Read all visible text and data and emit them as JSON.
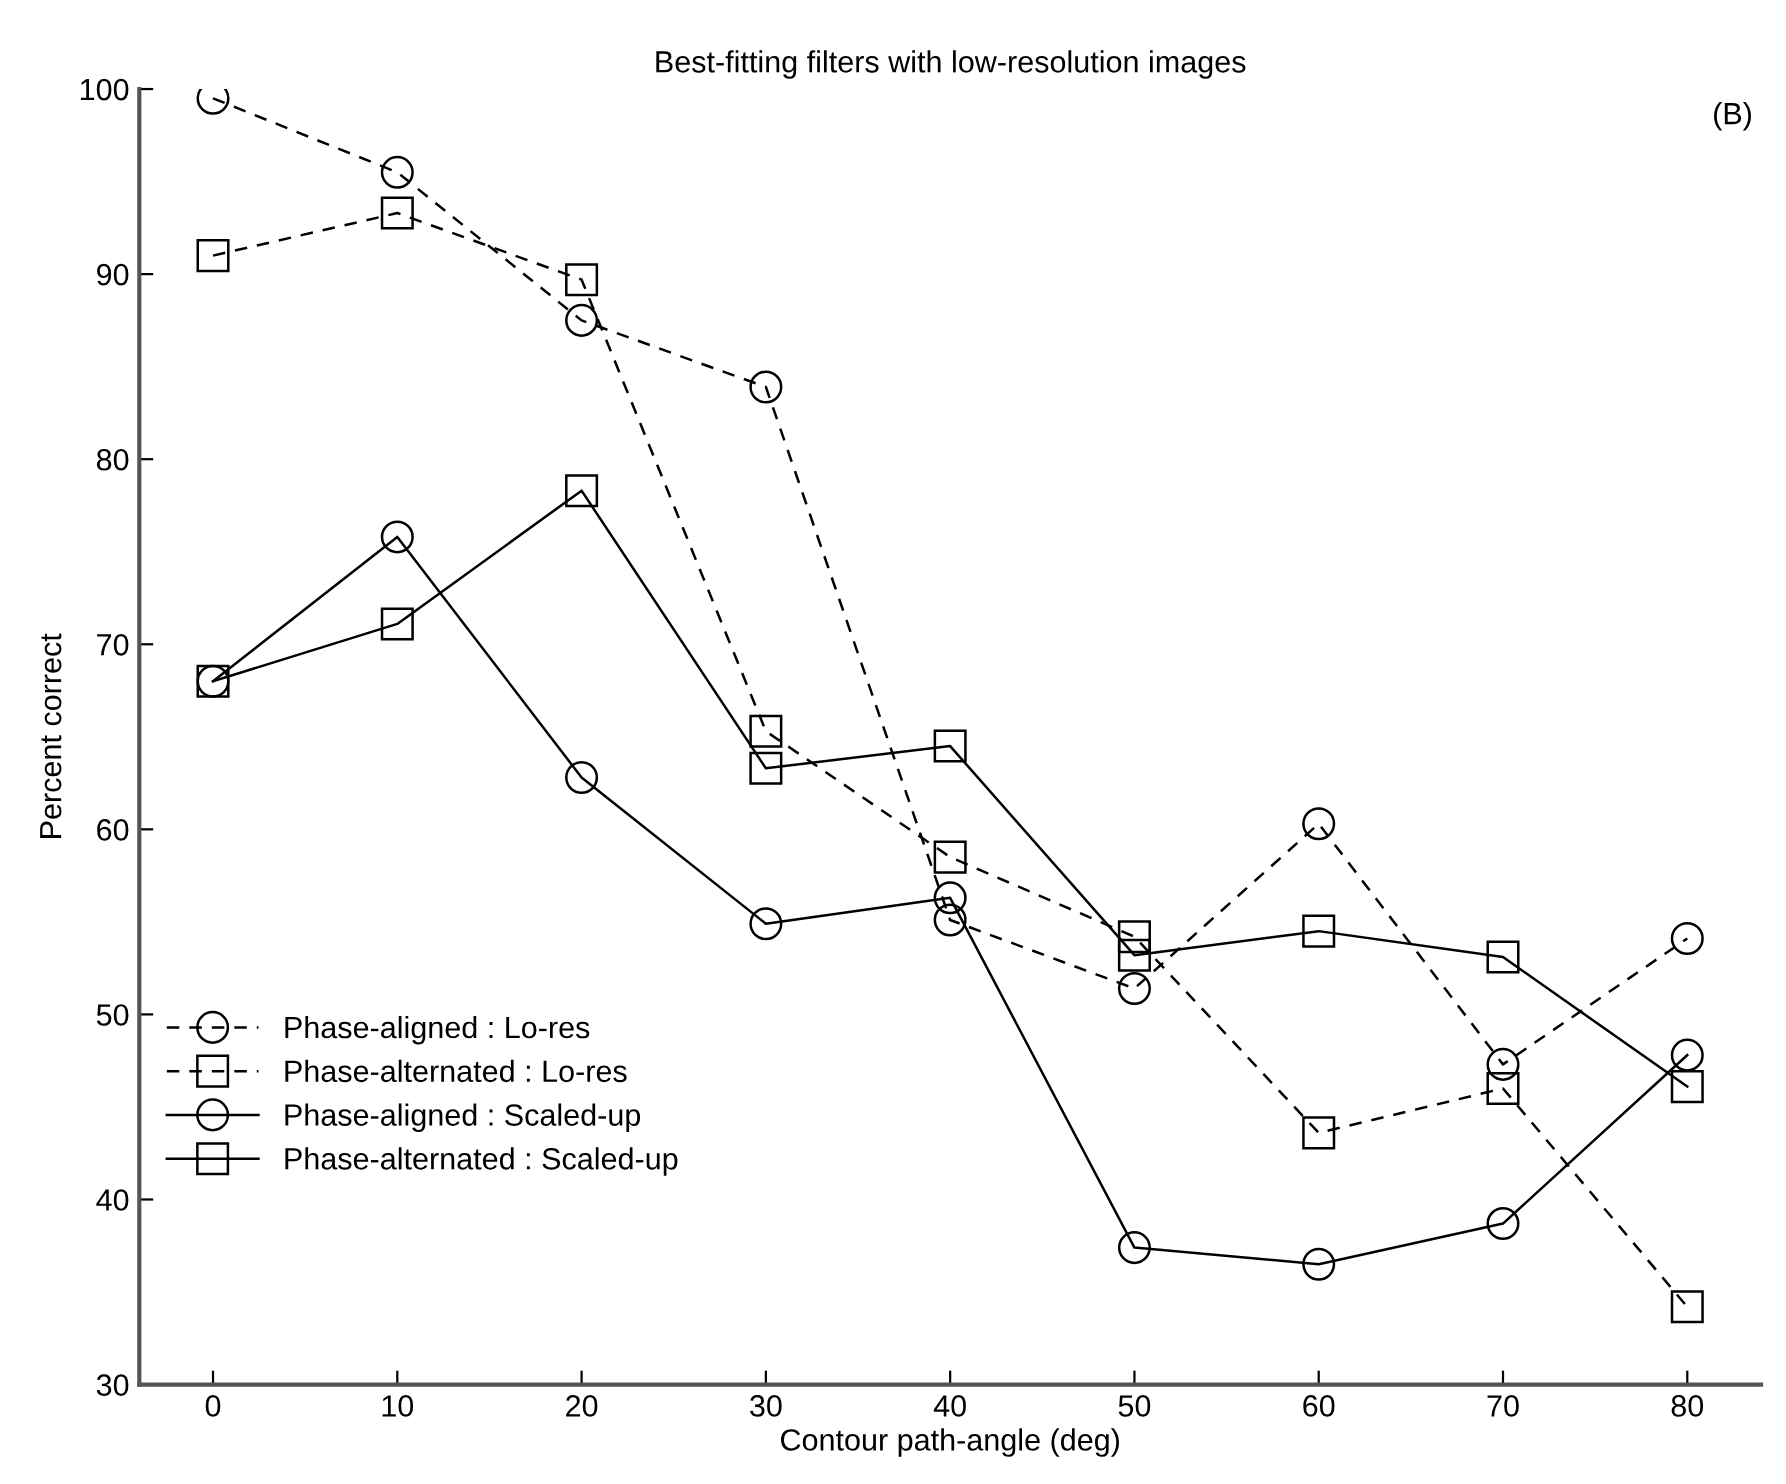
{
  "chart_data": {
    "type": "line",
    "title": "Best-fitting filters with low-resolution images",
    "xlabel": "Contour path-angle (deg)",
    "ylabel": "Percent correct",
    "annotations": [
      "(B)"
    ],
    "x": [
      0,
      10,
      20,
      30,
      40,
      50,
      60,
      70,
      80
    ],
    "xlim": [
      -4,
      84
    ],
    "xticks": [
      0,
      10,
      20,
      30,
      40,
      50,
      60,
      70,
      80
    ],
    "ylim": [
      30,
      100
    ],
    "yticks": [
      30,
      40,
      50,
      60,
      70,
      80,
      90,
      100
    ],
    "grid": false,
    "legend": "bottom left",
    "series": [
      {
        "name": "Phase-aligned : Lo-res",
        "color": "#000000",
        "marker": "circle",
        "line_style": "dashed",
        "values": [
          99.5,
          95.5,
          87.5,
          83.9,
          55.1,
          51.4,
          60.3,
          47.3,
          54.1
        ]
      },
      {
        "name": "Phase-alternated : Lo-res",
        "color": "#000000",
        "marker": "square",
        "line_style": "dashed",
        "values": [
          91,
          93.3,
          89.7,
          65.3,
          58.5,
          54.2,
          43.6,
          46,
          34.2
        ]
      },
      {
        "name": "Phase-aligned : Scaled-up",
        "color": "#000000",
        "marker": "circle",
        "line_style": "solid",
        "values": [
          68,
          75.8,
          62.8,
          54.9,
          56.3,
          37.4,
          36.5,
          38.7,
          47.8
        ]
      },
      {
        "name": "Phase-alternated : Scaled-up",
        "color": "#000000",
        "marker": "square",
        "line_style": "solid",
        "values": [
          68,
          71.1,
          78.3,
          63.3,
          64.5,
          53.2,
          54.5,
          53.1,
          46.1
        ]
      }
    ]
  }
}
